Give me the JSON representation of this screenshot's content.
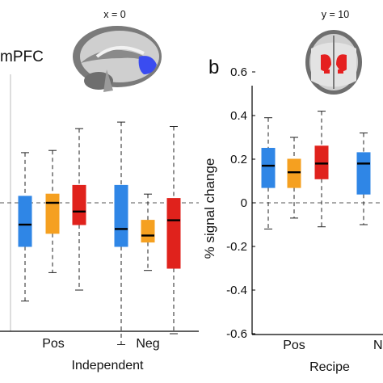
{
  "figure": {
    "left_panel": {
      "region_label": "mPFC",
      "slice_label": "x = 0"
    },
    "right_panel": {
      "panel_letter": "b",
      "slice_label": "y = 10"
    }
  },
  "colors": {
    "blue": "#2f86e6",
    "orange": "#f5a020",
    "red": "#e0221c",
    "brain_highlight_blue": "#3a4cf0",
    "brain_highlight_red": "#e52020"
  },
  "chart_data": [
    {
      "type": "box",
      "panel": "left",
      "ylabel": "",
      "ylim": [
        -0.7,
        0.75
      ],
      "categories": [
        "Pos",
        "Neg"
      ],
      "group_label": "Independent",
      "reference_line": 0,
      "series": [
        {
          "color": "blue",
          "boxes": [
            {
              "category": "Pos",
              "whisker_low": -0.45,
              "q1": -0.2,
              "median": -0.1,
              "q3": 0.03,
              "whisker_high": 0.23
            },
            {
              "category": "Neg",
              "whisker_low": -0.65,
              "q1": -0.2,
              "median": -0.12,
              "q3": 0.08,
              "whisker_high": 0.37
            }
          ]
        },
        {
          "color": "orange",
          "boxes": [
            {
              "category": "Pos",
              "whisker_low": -0.32,
              "q1": -0.14,
              "median": 0.0,
              "q3": 0.04,
              "whisker_high": 0.24
            },
            {
              "category": "Neg",
              "whisker_low": -0.31,
              "q1": -0.18,
              "median": -0.15,
              "q3": -0.08,
              "whisker_high": 0.04
            }
          ]
        },
        {
          "color": "red",
          "boxes": [
            {
              "category": "Pos",
              "whisker_low": -0.4,
              "q1": -0.1,
              "median": -0.04,
              "q3": 0.08,
              "whisker_high": 0.34
            },
            {
              "category": "Neg",
              "whisker_low": -0.6,
              "q1": -0.3,
              "median": -0.08,
              "q3": 0.02,
              "whisker_high": 0.35
            }
          ]
        }
      ]
    },
    {
      "type": "box",
      "panel": "right",
      "ylabel": "% signal change",
      "ylim": [
        -0.75,
        0.75
      ],
      "yticks": [
        0.6,
        0.4,
        0.2,
        0,
        -0.2,
        -0.4,
        -0.6
      ],
      "ytick_labels": [
        "0.6",
        "0.4",
        "0.2",
        "0",
        "-0.2",
        "-0.4",
        "-0.6"
      ],
      "categories": [
        "Pos",
        "N"
      ],
      "group_label": "Recipe",
      "reference_line": 0,
      "series": [
        {
          "color": "blue",
          "boxes": [
            {
              "category": "Pos",
              "whisker_low": -0.12,
              "q1": 0.07,
              "median": 0.17,
              "q3": 0.25,
              "whisker_high": 0.39
            },
            {
              "category": "N",
              "whisker_low": -0.1,
              "q1": 0.04,
              "median": 0.18,
              "q3": 0.23,
              "whisker_high": 0.32
            }
          ]
        },
        {
          "color": "orange",
          "boxes": [
            {
              "category": "Pos",
              "whisker_low": -0.07,
              "q1": 0.07,
              "median": 0.14,
              "q3": 0.2,
              "whisker_high": 0.3
            }
          ]
        },
        {
          "color": "red",
          "boxes": [
            {
              "category": "Pos",
              "whisker_low": -0.11,
              "q1": 0.11,
              "median": 0.18,
              "q3": 0.26,
              "whisker_high": 0.42
            }
          ]
        }
      ]
    }
  ]
}
